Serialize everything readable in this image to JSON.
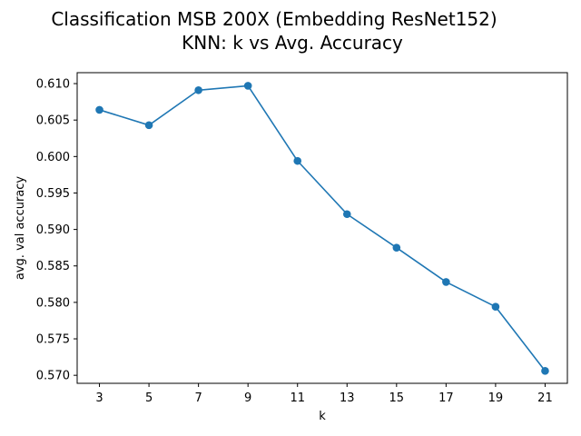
{
  "chart_data": {
    "type": "line",
    "title_line1": "Classification MSB 200X (Embedding ResNet152)",
    "title_line2": "KNN: k vs  Avg. Accuracy",
    "xlabel": "k",
    "ylabel": "avg. val accuracy",
    "x": [
      3,
      5,
      7,
      9,
      11,
      13,
      15,
      17,
      19,
      21
    ],
    "x_tick_labels": [
      "3",
      "5",
      "7",
      "9",
      "11",
      "13",
      "15",
      "17",
      "19",
      "21"
    ],
    "y_ticks": [
      0.57,
      0.575,
      0.58,
      0.585,
      0.59,
      0.595,
      0.6,
      0.605,
      0.61
    ],
    "y_tick_labels": [
      "0.570",
      "0.575",
      "0.580",
      "0.585",
      "0.590",
      "0.595",
      "0.600",
      "0.605",
      "0.610"
    ],
    "xlim": [
      2.1,
      21.9
    ],
    "ylim": [
      0.5689,
      0.6115
    ],
    "series": [
      {
        "color": "#1f77b4",
        "marker": "circle",
        "values": [
          0.6064,
          0.6043,
          0.6091,
          0.6097,
          0.5994,
          0.5921,
          0.5875,
          0.5828,
          0.5794,
          0.5706
        ]
      }
    ],
    "grid": false,
    "legend": "none"
  }
}
